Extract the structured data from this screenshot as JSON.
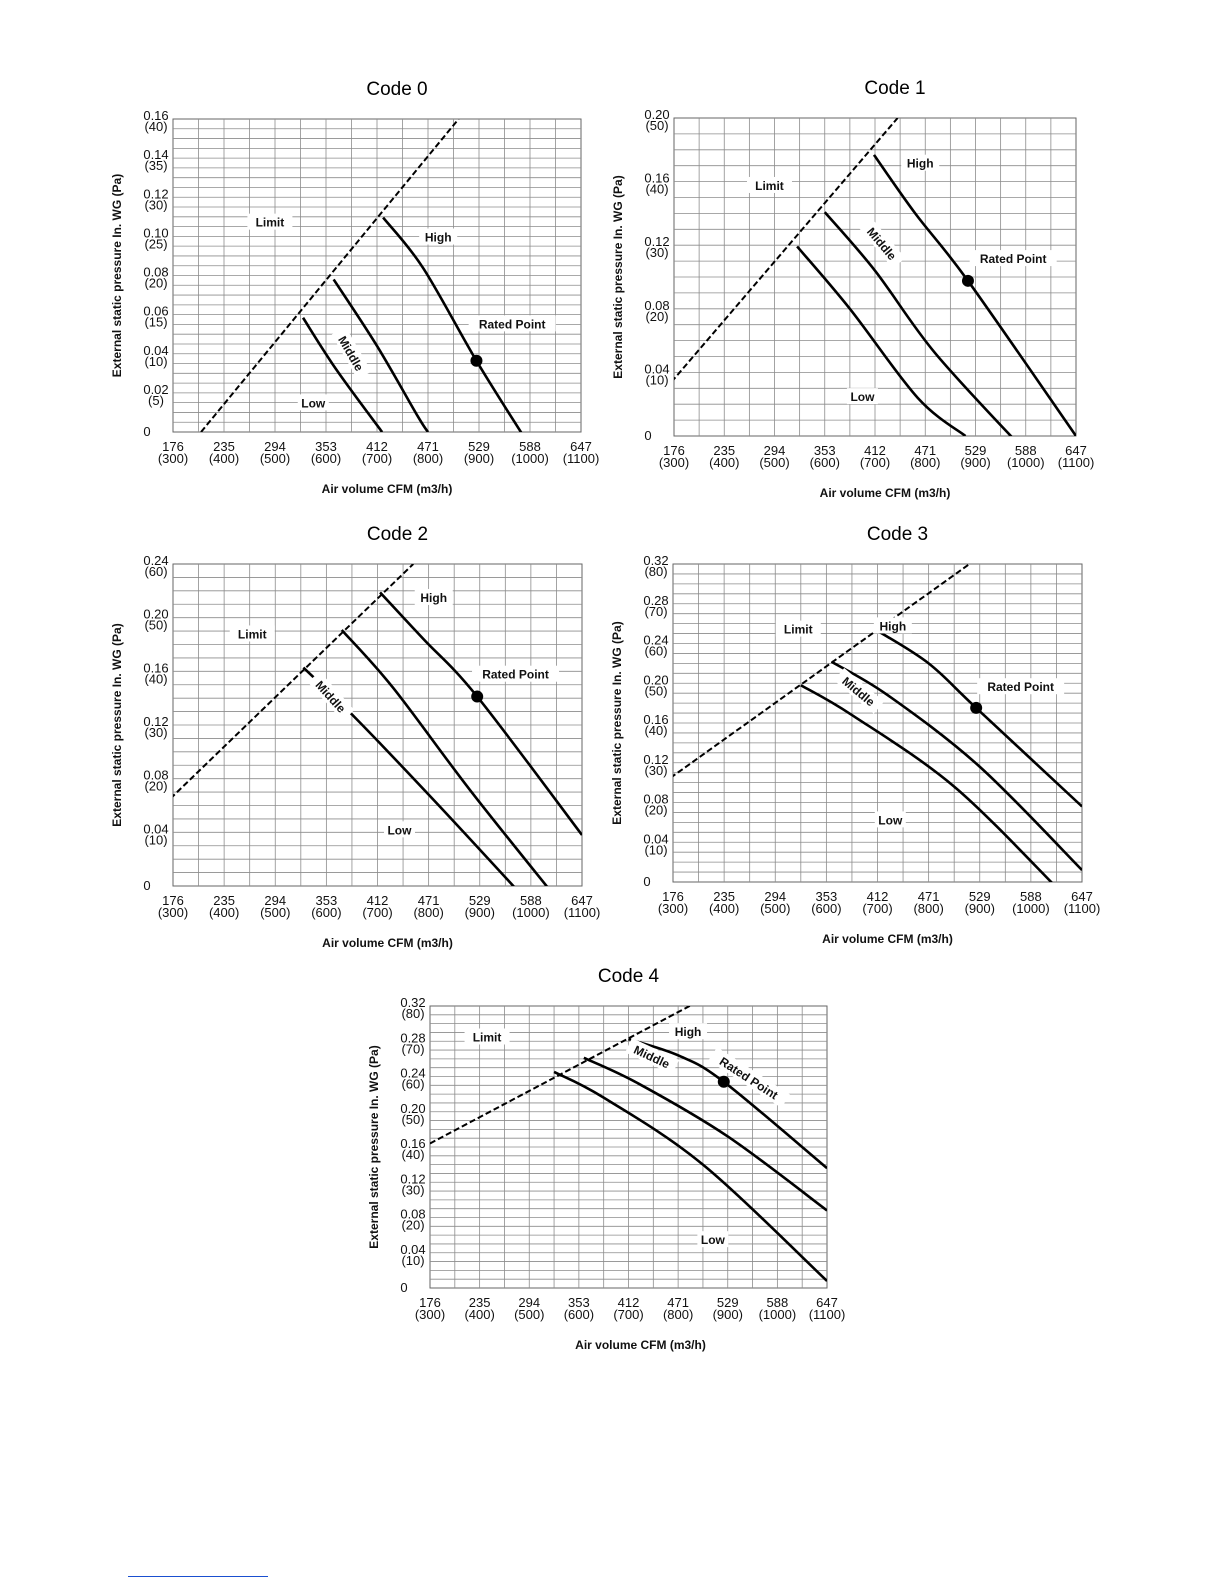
{
  "charts": [
    {
      "title": "Code 0",
      "chart_data": {
        "type": "line",
        "title": "Code 0",
        "xlabel": "Air volume CFM (m3/h)",
        "ylabel": "External static pressure In. WG (Pa)",
        "x_ticks": [
          {
            "cfm": "176",
            "m3h": "(300)"
          },
          {
            "cfm": "235",
            "m3h": "(400)"
          },
          {
            "cfm": "294",
            "m3h": "(500)"
          },
          {
            "cfm": "353",
            "m3h": "(600)"
          },
          {
            "cfm": "412",
            "m3h": "(700)"
          },
          {
            "cfm": "471",
            "m3h": "(800)"
          },
          {
            "cfm": "529",
            "m3h": "(900)"
          },
          {
            "cfm": "588",
            "m3h": "(1000)"
          },
          {
            "cfm": "647",
            "m3h": "(1100)"
          }
        ],
        "y_ticks": [
          {
            "inwg": "0",
            "pa": ""
          },
          {
            "inwg": "0.02",
            "pa": "(5)"
          },
          {
            "inwg": "0.04",
            "pa": "(10)"
          },
          {
            "inwg": "0.06",
            "pa": "(15)"
          },
          {
            "inwg": "0.08",
            "pa": "(20)"
          },
          {
            "inwg": "0.10",
            "pa": "(25)"
          },
          {
            "inwg": "0.12",
            "pa": "(30)"
          },
          {
            "inwg": "0.14",
            "pa": "(35)"
          },
          {
            "inwg": "0.16",
            "pa": "(40)"
          }
        ],
        "xlim": [
          300,
          1100
        ],
        "ylim": [
          0,
          40
        ],
        "grid": true,
        "series": [
          {
            "name": "Limit",
            "style": "dashed",
            "points": [
              [
                355,
                0
              ],
              [
                860,
                40
              ]
            ]
          },
          {
            "name": "High",
            "points": [
              [
                712,
                27.4
              ],
              [
                790,
                21
              ],
              [
                895,
                9.1
              ],
              [
                985,
                -0.3
              ]
            ]
          },
          {
            "name": "Middle",
            "points": [
              [
                615,
                19.5
              ],
              [
                700,
                11
              ],
              [
                780,
                2
              ],
              [
                800,
                0
              ]
            ]
          },
          {
            "name": "Low",
            "points": [
              [
                555,
                14.6
              ],
              [
                620,
                8
              ],
              [
                710,
                0
              ]
            ]
          }
        ],
        "annotations": [
          {
            "text": "Limit",
            "x": 490,
            "y": 26.5
          },
          {
            "text": "High",
            "x": 820,
            "y": 24.6
          },
          {
            "text": "Middle",
            "x": 645,
            "y": 9.9,
            "rotate": 60
          },
          {
            "text": "Low",
            "x": 575,
            "y": 3.4
          },
          {
            "text": "Rated Point",
            "x": 965,
            "y": 13.5
          }
        ],
        "rated_point": {
          "label": "Rated Point",
          "x": 895,
          "y": 9.1
        }
      }
    },
    {
      "title": "Code 1",
      "chart_data": {
        "type": "line",
        "title": "Code 1",
        "xlabel": "Air volume CFM (m3/h)",
        "ylabel": "External static pressure In. WG (Pa)",
        "x_ticks": [
          {
            "cfm": "176",
            "m3h": "(300)"
          },
          {
            "cfm": "235",
            "m3h": "(400)"
          },
          {
            "cfm": "294",
            "m3h": "(500)"
          },
          {
            "cfm": "353",
            "m3h": "(600)"
          },
          {
            "cfm": "412",
            "m3h": "(700)"
          },
          {
            "cfm": "471",
            "m3h": "(800)"
          },
          {
            "cfm": "529",
            "m3h": "(900)"
          },
          {
            "cfm": "588",
            "m3h": "(1000)"
          },
          {
            "cfm": "647",
            "m3h": "(1100)"
          }
        ],
        "y_ticks": [
          {
            "inwg": "0",
            "pa": ""
          },
          {
            "inwg": "0.04",
            "pa": "(10)"
          },
          {
            "inwg": "0.08",
            "pa": "(20)"
          },
          {
            "inwg": "0.12",
            "pa": "(30)"
          },
          {
            "inwg": "0.16",
            "pa": "(40)"
          },
          {
            "inwg": "0.20",
            "pa": "(50)"
          }
        ],
        "xlim": [
          300,
          1100
        ],
        "ylim": [
          0,
          50
        ],
        "grid": true,
        "series": [
          {
            "name": "Limit",
            "style": "dashed",
            "points": [
              [
                295,
                8.5
              ],
              [
                745,
                50
              ]
            ]
          },
          {
            "name": "High",
            "points": [
              [
                698,
                44.2
              ],
              [
                780,
                35
              ],
              [
                885,
                24.4
              ],
              [
                1100,
                0
              ]
            ]
          },
          {
            "name": "Middle",
            "points": [
              [
                600,
                35.2
              ],
              [
                700,
                26
              ],
              [
                820,
                13
              ],
              [
                1000,
                -2.5
              ]
            ]
          },
          {
            "name": "Low",
            "points": [
              [
                545,
                29.8
              ],
              [
                650,
                20
              ],
              [
                785,
                6
              ],
              [
                880,
                0
              ]
            ]
          }
        ],
        "annotations": [
          {
            "text": "Limit",
            "x": 490,
            "y": 39
          },
          {
            "text": "High",
            "x": 790,
            "y": 42.5
          },
          {
            "text": "Middle",
            "x": 710,
            "y": 30,
            "rotate": 50
          },
          {
            "text": "Low",
            "x": 675,
            "y": 5.8
          },
          {
            "text": "Rated Point",
            "x": 975,
            "y": 27.5
          }
        ],
        "rated_point": {
          "label": "Rated Point",
          "x": 885,
          "y": 24.4
        }
      }
    },
    {
      "title": "Code 2",
      "chart_data": {
        "type": "line",
        "title": "Code 2",
        "xlabel": "Air volume CFM (m3/h)",
        "ylabel": "External static pressure In. WG (Pa)",
        "x_ticks": [
          {
            "cfm": "176",
            "m3h": "(300)"
          },
          {
            "cfm": "235",
            "m3h": "(400)"
          },
          {
            "cfm": "294",
            "m3h": "(500)"
          },
          {
            "cfm": "353",
            "m3h": "(600)"
          },
          {
            "cfm": "412",
            "m3h": "(700)"
          },
          {
            "cfm": "471",
            "m3h": "(800)"
          },
          {
            "cfm": "529",
            "m3h": "(900)"
          },
          {
            "cfm": "588",
            "m3h": "(1000)"
          },
          {
            "cfm": "647",
            "m3h": "(1100)"
          }
        ],
        "y_ticks": [
          {
            "inwg": "0",
            "pa": ""
          },
          {
            "inwg": "0.04",
            "pa": "(10)"
          },
          {
            "inwg": "0.08",
            "pa": "(20)"
          },
          {
            "inwg": "0.12",
            "pa": "(30)"
          },
          {
            "inwg": "0.16",
            "pa": "(40)"
          },
          {
            "inwg": "0.20",
            "pa": "(50)"
          },
          {
            "inwg": "0.24",
            "pa": "(60)"
          }
        ],
        "xlim": [
          300,
          1100
        ],
        "ylim": [
          0,
          60
        ],
        "grid": true,
        "series": [
          {
            "name": "Limit",
            "style": "dashed",
            "points": [
              [
                295,
                16.3
              ],
              [
                770,
                60
              ]
            ]
          },
          {
            "name": "High",
            "points": [
              [
                705,
                54.7
              ],
              [
                790,
                46
              ],
              [
                895,
                35.3
              ],
              [
                1100,
                9.5
              ]
            ]
          },
          {
            "name": "Middle",
            "points": [
              [
                630,
                47.7
              ],
              [
                730,
                37
              ],
              [
                880,
                18
              ],
              [
                1050,
                -2.3
              ]
            ]
          },
          {
            "name": "Low",
            "points": [
              [
                555,
                40.7
              ],
              [
                660,
                31
              ],
              [
                820,
                15
              ],
              [
                985,
                -2
              ]
            ]
          }
        ],
        "annotations": [
          {
            "text": "Limit",
            "x": 455,
            "y": 46.5
          },
          {
            "text": "High",
            "x": 810,
            "y": 53.3
          },
          {
            "text": "Middle",
            "x": 605,
            "y": 35,
            "rotate": 48
          },
          {
            "text": "Low",
            "x": 743,
            "y": 10
          },
          {
            "text": "Rated Point",
            "x": 970,
            "y": 39
          }
        ],
        "rated_point": {
          "label": "Rated Point",
          "x": 895,
          "y": 35.3
        }
      }
    },
    {
      "title": "Code 3",
      "chart_data": {
        "type": "line",
        "title": "Code 3",
        "xlabel": "Air volume CFM (m3/h)",
        "ylabel": "External static pressure In. WG (Pa)",
        "x_ticks": [
          {
            "cfm": "176",
            "m3h": "(300)"
          },
          {
            "cfm": "235",
            "m3h": "(400)"
          },
          {
            "cfm": "294",
            "m3h": "(500)"
          },
          {
            "cfm": "353",
            "m3h": "(600)"
          },
          {
            "cfm": "412",
            "m3h": "(700)"
          },
          {
            "cfm": "471",
            "m3h": "(800)"
          },
          {
            "cfm": "529",
            "m3h": "(900)"
          },
          {
            "cfm": "588",
            "m3h": "(1000)"
          },
          {
            "cfm": "647",
            "m3h": "(1100)"
          }
        ],
        "y_ticks": [
          {
            "inwg": "0",
            "pa": ""
          },
          {
            "inwg": "0.04",
            "pa": "(10)"
          },
          {
            "inwg": "0.08",
            "pa": "(20)"
          },
          {
            "inwg": "0.12",
            "pa": "(30)"
          },
          {
            "inwg": "0.16",
            "pa": "(40)"
          },
          {
            "inwg": "0.20",
            "pa": "(50)"
          },
          {
            "inwg": "0.24",
            "pa": "(60)"
          },
          {
            "inwg": "0.28",
            "pa": "(70)"
          },
          {
            "inwg": "0.32",
            "pa": "(80)"
          }
        ],
        "xlim": [
          300,
          1100
        ],
        "ylim": [
          0,
          80
        ],
        "grid": true,
        "series": [
          {
            "name": "Limit",
            "style": "dashed",
            "points": [
              [
                295,
                26.2
              ],
              [
                880,
                80
              ]
            ]
          },
          {
            "name": "High",
            "points": [
              [
                700,
                63.2
              ],
              [
                800,
                55
              ],
              [
                893,
                43.8
              ],
              [
                1100,
                19
              ]
            ]
          },
          {
            "name": "Middle",
            "points": [
              [
                610,
                55.4
              ],
              [
                720,
                47
              ],
              [
                900,
                29
              ],
              [
                1100,
                3
              ]
            ]
          },
          {
            "name": "Low",
            "points": [
              [
                550,
                49.5
              ],
              [
                650,
                42
              ],
              [
                850,
                24
              ],
              [
                1055,
                -2
              ]
            ]
          }
        ],
        "annotations": [
          {
            "text": "Limit",
            "x": 545,
            "y": 63
          },
          {
            "text": "High",
            "x": 730,
            "y": 63.8
          },
          {
            "text": "Middle",
            "x": 660,
            "y": 47.5,
            "rotate": 40
          },
          {
            "text": "Low",
            "x": 725,
            "y": 15
          },
          {
            "text": "Rated Point",
            "x": 980,
            "y": 48.5
          }
        ],
        "rated_point": {
          "label": "Rated Point",
          "x": 893,
          "y": 43.8
        }
      }
    },
    {
      "title": "Code 4",
      "chart_data": {
        "type": "line",
        "title": "Code 4",
        "xlabel": "Air volume CFM (m3/h)",
        "ylabel": "External static pressure In. WG (Pa)",
        "x_ticks": [
          {
            "cfm": "176",
            "m3h": "(300)"
          },
          {
            "cfm": "235",
            "m3h": "(400)"
          },
          {
            "cfm": "294",
            "m3h": "(500)"
          },
          {
            "cfm": "353",
            "m3h": "(600)"
          },
          {
            "cfm": "412",
            "m3h": "(700)"
          },
          {
            "cfm": "471",
            "m3h": "(800)"
          },
          {
            "cfm": "529",
            "m3h": "(900)"
          },
          {
            "cfm": "588",
            "m3h": "(1000)"
          },
          {
            "cfm": "647",
            "m3h": "(1100)"
          }
        ],
        "y_ticks": [
          {
            "inwg": "0",
            "pa": ""
          },
          {
            "inwg": "0.04",
            "pa": "(10)"
          },
          {
            "inwg": "0.08",
            "pa": "(20)"
          },
          {
            "inwg": "0.12",
            "pa": "(30)"
          },
          {
            "inwg": "0.16",
            "pa": "(40)"
          },
          {
            "inwg": "0.20",
            "pa": "(50)"
          },
          {
            "inwg": "0.24",
            "pa": "(60)"
          },
          {
            "inwg": "0.28",
            "pa": "(70)"
          },
          {
            "inwg": "0.32",
            "pa": "(80)"
          }
        ],
        "xlim": [
          300,
          1100
        ],
        "ylim": [
          0,
          80
        ],
        "grid": true,
        "series": [
          {
            "name": "Limit",
            "style": "dashed",
            "points": [
              [
                300,
                41
              ],
              [
                850,
                82
              ]
            ]
          },
          {
            "name": "High",
            "points": [
              [
                700,
                70.6
              ],
              [
                800,
                66
              ],
              [
                892,
                58.5
              ],
              [
                1100,
                34
              ]
            ]
          },
          {
            "name": "Middle",
            "points": [
              [
                610,
                65.3
              ],
              [
                720,
                58
              ],
              [
                900,
                43
              ],
              [
                1100,
                22
              ]
            ]
          },
          {
            "name": "Low",
            "points": [
              [
                550,
                61.3
              ],
              [
                650,
                54
              ],
              [
                850,
                35
              ],
              [
                1100,
                2
              ]
            ]
          }
        ],
        "annotations": [
          {
            "text": "Limit",
            "x": 415,
            "y": 70.5
          },
          {
            "text": "High",
            "x": 820,
            "y": 72
          },
          {
            "text": "Middle",
            "x": 745,
            "y": 65,
            "rotate": 25
          },
          {
            "text": "Rated Point",
            "x": 940,
            "y": 59,
            "rotate": 33
          },
          {
            "text": "Low",
            "x": 870,
            "y": 13
          }
        ],
        "rated_point": {
          "label": "Rated Point",
          "x": 892,
          "y": 58.5
        }
      }
    }
  ]
}
